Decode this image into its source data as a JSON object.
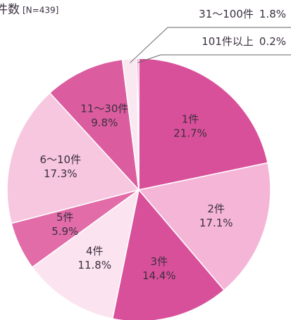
{
  "chart_data": {
    "type": "pie",
    "title": "件数",
    "subtitle": "[N=439]",
    "categories": [
      "1件",
      "2件",
      "3件",
      "4件",
      "5件",
      "6〜10件",
      "11〜30件",
      "31〜100件",
      "101件以上"
    ],
    "values": [
      21.7,
      17.1,
      14.4,
      11.8,
      5.9,
      17.3,
      9.8,
      1.8,
      0.2
    ],
    "value_labels": [
      "21.7%",
      "17.1%",
      "14.4%",
      "11.8%",
      "5.9%",
      "17.3%",
      "9.8%",
      "1.8%",
      "0.2%"
    ],
    "colors": [
      "#d9509a",
      "#f5b5d7",
      "#d9509a",
      "#fbe4f0",
      "#e26ca8",
      "#f7c6df",
      "#db5d9f",
      "#f9e8f1",
      "#d9509a"
    ]
  }
}
